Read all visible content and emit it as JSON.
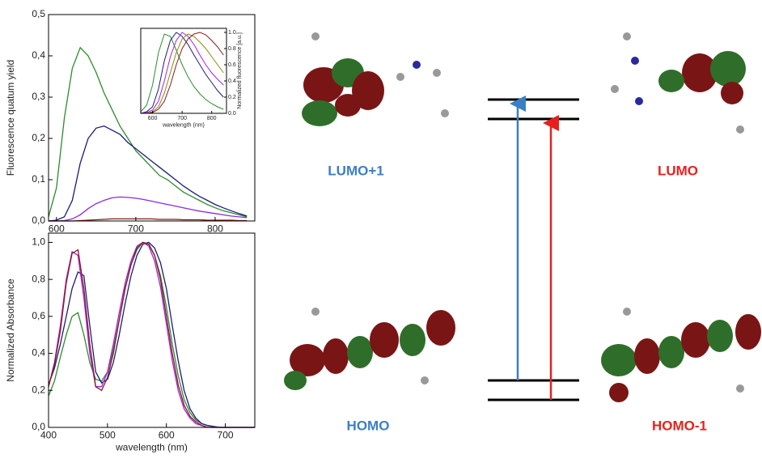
{
  "chart_data": [
    {
      "type": "line",
      "y_label": "Fluorescence quatum yield",
      "x": [
        590,
        600,
        610,
        620,
        630,
        640,
        650,
        660,
        670,
        680,
        690,
        700,
        710,
        720,
        730,
        740,
        750,
        760,
        770,
        780,
        790,
        800,
        810,
        820,
        830,
        840
      ],
      "xlim": [
        590,
        850
      ],
      "xticks": [
        600,
        700,
        800
      ],
      "ylim": [
        0,
        0.5
      ],
      "yticks": [
        {
          "value": 0,
          "label": "0,0"
        },
        {
          "value": 0.1,
          "label": "0,1"
        },
        {
          "value": 0.2,
          "label": "0,2"
        },
        {
          "value": 0.3,
          "label": "0,3"
        },
        {
          "value": 0.4,
          "label": "0,4"
        },
        {
          "value": 0.5,
          "label": "0,5"
        }
      ],
      "series": [
        {
          "color": "#2e8b2e",
          "values": [
            0.01,
            0.08,
            0.25,
            0.37,
            0.42,
            0.4,
            0.36,
            0.31,
            0.27,
            0.23,
            0.2,
            0.17,
            0.15,
            0.13,
            0.11,
            0.1,
            0.085,
            0.07,
            0.06,
            0.05,
            0.04,
            0.032,
            0.025,
            0.02,
            0.015,
            0.01
          ]
        },
        {
          "color": "#1c1c7a",
          "values": [
            0,
            0.002,
            0.01,
            0.05,
            0.14,
            0.2,
            0.225,
            0.23,
            0.22,
            0.21,
            0.19,
            0.175,
            0.16,
            0.145,
            0.13,
            0.115,
            0.1,
            0.085,
            0.072,
            0.06,
            0.05,
            0.04,
            0.032,
            0.025,
            0.018,
            0.012
          ]
        },
        {
          "color": "#8a2be2",
          "values": [
            0,
            0,
            0.001,
            0.005,
            0.015,
            0.03,
            0.042,
            0.05,
            0.056,
            0.058,
            0.057,
            0.055,
            0.052,
            0.048,
            0.044,
            0.04,
            0.036,
            0.032,
            0.028,
            0.024,
            0.021,
            0.018,
            0.015,
            0.012,
            0.01,
            0.008
          ]
        },
        {
          "color": "#8b1a1a",
          "values": [
            0,
            0,
            0,
            0,
            0.001,
            0.002,
            0.003,
            0.004,
            0.005,
            0.005,
            0.005,
            0.005,
            0.005,
            0.005,
            0.004,
            0.004,
            0.004,
            0.003,
            0.003,
            0.003,
            0.002,
            0.002,
            0.002,
            0.002,
            0.001,
            0.001
          ]
        }
      ]
    },
    {
      "type": "line",
      "x_label": "wavelength (nm)",
      "y_label": "Normalized fluorescence [a.u.]",
      "x": [
        560,
        580,
        600,
        620,
        640,
        660,
        680,
        700,
        720,
        740,
        760,
        780,
        800,
        820,
        840
      ],
      "xlim": [
        560,
        850
      ],
      "xticks": [
        600,
        700,
        800
      ],
      "ylim": [
        0,
        1.05
      ],
      "yticks": [
        {
          "value": 0,
          "label": "0.0"
        },
        0.2,
        0.4,
        0.6,
        0.8,
        {
          "value": 1,
          "label": "1.0"
        }
      ],
      "series": [
        {
          "color": "#2e8b2e",
          "values": [
            0.02,
            0.1,
            0.35,
            0.75,
            0.98,
            0.95,
            0.78,
            0.6,
            0.45,
            0.33,
            0.24,
            0.17,
            0.12,
            0.08,
            0.05
          ]
        },
        {
          "color": "#1c1c7a",
          "values": [
            0,
            0.02,
            0.08,
            0.3,
            0.65,
            0.9,
            1.0,
            0.95,
            0.85,
            0.72,
            0.6,
            0.48,
            0.38,
            0.28,
            0.2
          ]
        },
        {
          "color": "#a020f0",
          "values": [
            0,
            0.01,
            0.04,
            0.15,
            0.4,
            0.7,
            0.9,
            1.0,
            0.95,
            0.85,
            0.72,
            0.6,
            0.5,
            0.42,
            0.35
          ]
        },
        {
          "color": "#8b8b00",
          "values": [
            0,
            0,
            0.02,
            0.08,
            0.25,
            0.5,
            0.75,
            0.92,
            0.98,
            0.95,
            0.88,
            0.8,
            0.7,
            0.6,
            0.5
          ]
        },
        {
          "color": "#8b1a1a",
          "values": [
            0,
            0,
            0.01,
            0.05,
            0.15,
            0.35,
            0.6,
            0.8,
            0.92,
            0.98,
            1.0,
            0.97,
            0.9,
            0.82,
            0.72
          ]
        }
      ]
    },
    {
      "type": "line",
      "x_label": "wavelength (nm)",
      "y_label": "Normalized Absorbance",
      "x": [
        400,
        410,
        420,
        430,
        440,
        450,
        460,
        470,
        480,
        490,
        500,
        510,
        520,
        530,
        540,
        550,
        560,
        570,
        580,
        590,
        600,
        610,
        620,
        630,
        640,
        650,
        660,
        670,
        680,
        690,
        700,
        710,
        720,
        730,
        740,
        750
      ],
      "xlim": [
        400,
        750
      ],
      "xticks": [
        400,
        500,
        600,
        700
      ],
      "ylim": [
        0,
        1.05
      ],
      "yticks": [
        {
          "value": 0,
          "label": "0,0"
        },
        {
          "value": 0.2,
          "label": "0,2"
        },
        {
          "value": 0.4,
          "label": "0,4"
        },
        {
          "value": 0.6,
          "label": "0,6"
        },
        {
          "value": 0.8,
          "label": "0,8"
        },
        {
          "value": 1,
          "label": "1,0"
        }
      ],
      "series": [
        {
          "color": "#2e8b2e",
          "values": [
            0.17,
            0.25,
            0.38,
            0.5,
            0.6,
            0.62,
            0.5,
            0.35,
            0.26,
            0.25,
            0.3,
            0.42,
            0.58,
            0.75,
            0.88,
            0.96,
            1.0,
            0.99,
            0.93,
            0.82,
            0.65,
            0.45,
            0.28,
            0.15,
            0.08,
            0.04,
            0.02,
            0.01,
            0.005,
            0,
            0,
            0,
            0,
            0,
            0,
            0
          ]
        },
        {
          "color": "#1c1c7a",
          "values": [
            0.23,
            0.32,
            0.45,
            0.6,
            0.75,
            0.84,
            0.82,
            0.55,
            0.3,
            0.24,
            0.26,
            0.35,
            0.5,
            0.67,
            0.82,
            0.93,
            0.99,
            1.0,
            0.97,
            0.89,
            0.75,
            0.55,
            0.36,
            0.2,
            0.1,
            0.05,
            0.02,
            0.01,
            0.005,
            0,
            0,
            0,
            0,
            0,
            0,
            0
          ]
        },
        {
          "color": "#a020f0",
          "values": [
            0.22,
            0.35,
            0.55,
            0.8,
            0.95,
            0.93,
            0.7,
            0.4,
            0.22,
            0.22,
            0.3,
            0.45,
            0.62,
            0.78,
            0.9,
            0.98,
            1.0,
            0.98,
            0.9,
            0.76,
            0.56,
            0.36,
            0.2,
            0.1,
            0.05,
            0.02,
            0.01,
            0,
            0,
            0,
            0,
            0,
            0,
            0,
            0,
            0
          ]
        },
        {
          "color": "#8b1a1a",
          "values": [
            0.22,
            0.34,
            0.52,
            0.78,
            0.94,
            0.96,
            0.75,
            0.45,
            0.22,
            0.2,
            0.27,
            0.4,
            0.58,
            0.75,
            0.88,
            0.97,
            1.0,
            0.99,
            0.93,
            0.8,
            0.6,
            0.4,
            0.23,
            0.12,
            0.06,
            0.03,
            0.01,
            0,
            0,
            0,
            0,
            0,
            0,
            0,
            0,
            0
          ]
        }
      ]
    }
  ],
  "diagram": {
    "orbitals": [
      {
        "label": "LUMO+1",
        "color": "#3a7fc4"
      },
      {
        "label": "LUMO",
        "color": "#e8201c"
      },
      {
        "label": "HOMO",
        "color": "#3a7fc4"
      },
      {
        "label": "HOMO-1",
        "color": "#e8201c"
      }
    ]
  }
}
